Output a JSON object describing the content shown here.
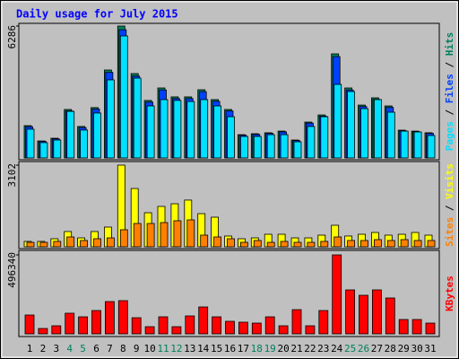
{
  "chart_data": [
    {
      "type": "bar",
      "title": "Daily usage for July 2015",
      "series": [
        {
          "name": "Hits",
          "color": "#00805c",
          "values": [
            1540,
            810,
            940,
            2310,
            1500,
            2400,
            4190,
            6286,
            4020,
            2740,
            3335,
            2910,
            2910,
            3250,
            2780,
            2310,
            1110,
            1155,
            1200,
            1280,
            855,
            1710,
            2050,
            4960,
            3335,
            2520,
            2865,
            2480,
            1325,
            1280,
            1200
          ]
        },
        {
          "name": "Files",
          "color": "#0040ff",
          "values": [
            1490,
            790,
            910,
            2240,
            1450,
            2330,
            4080,
            6110,
            3900,
            2660,
            3240,
            2830,
            2830,
            3160,
            2700,
            2240,
            1080,
            1120,
            1170,
            1240,
            830,
            1660,
            1990,
            4830,
            3240,
            2450,
            2790,
            2410,
            1290,
            1245,
            1170
          ]
        },
        {
          "name": "Pages",
          "color": "#00e0ff",
          "values": [
            1370,
            730,
            855,
            2220,
            1330,
            2140,
            3720,
            5815,
            3805,
            2480,
            2780,
            2740,
            2690,
            2780,
            2480,
            1965,
            1025,
            1025,
            1110,
            1110,
            770,
            1500,
            1965,
            3505,
            3165,
            2350,
            2780,
            2180,
            1280,
            1240,
            1070
          ]
        }
      ],
      "ylim": [
        0,
        6286
      ],
      "yticks": [
        6286
      ]
    },
    {
      "type": "bar",
      "series": [
        {
          "name": "Visits",
          "color": "#ffff00",
          "values": [
            205,
            205,
            307,
            580,
            340,
            580,
            750,
            3102,
            2215,
            1295,
            1535,
            1635,
            1775,
            1260,
            1125,
            410,
            307,
            340,
            477,
            477,
            340,
            340,
            443,
            818,
            410,
            477,
            545,
            443,
            477,
            545,
            443
          ]
        },
        {
          "name": "Sites",
          "color": "#ff8000",
          "values": [
            170,
            170,
            205,
            375,
            240,
            307,
            340,
            648,
            886,
            886,
            920,
            990,
            1023,
            443,
            375,
            307,
            170,
            240,
            170,
            205,
            170,
            170,
            205,
            375,
            240,
            240,
            273,
            240,
            273,
            240,
            240
          ]
        }
      ],
      "ylim": [
        0,
        3102
      ],
      "yticks": [
        3102
      ]
    },
    {
      "type": "bar",
      "series": [
        {
          "name": "KBytes",
          "color": "#ff0000",
          "values": [
            118445,
            33840,
            50760,
            129725,
            107165,
            146645,
            203050,
            208690,
            101525,
            45120,
            107165,
            45120,
            112805,
            169205,
            107165,
            78965,
            73325,
            67685,
            107165,
            50760,
            152285,
            50760,
            146645,
            496340,
            276370,
            242530,
            276370,
            225610,
            90245,
            90245,
            67685
          ]
        }
      ],
      "ylim": [
        0,
        496340
      ],
      "yticks": [
        496340
      ],
      "categories": [
        "1",
        "2",
        "3",
        "4",
        "5",
        "6",
        "7",
        "8",
        "9",
        "10",
        "11",
        "12",
        "13",
        "14",
        "15",
        "16",
        "17",
        "18",
        "19",
        "20",
        "21",
        "22",
        "23",
        "24",
        "25",
        "26",
        "27",
        "28",
        "29",
        "30",
        "31"
      ],
      "category_colors": [
        "#000000",
        "#000000",
        "#000000",
        "#00805c",
        "#00805c",
        "#000000",
        "#000000",
        "#000000",
        "#000000",
        "#000000",
        "#00805c",
        "#00805c",
        "#000000",
        "#000000",
        "#000000",
        "#000000",
        "#000000",
        "#00805c",
        "#00805c",
        "#000000",
        "#000000",
        "#000000",
        "#000000",
        "#000000",
        "#00805c",
        "#00805c",
        "#000000",
        "#000000",
        "#000000",
        "#000000",
        "#000000"
      ]
    }
  ]
}
